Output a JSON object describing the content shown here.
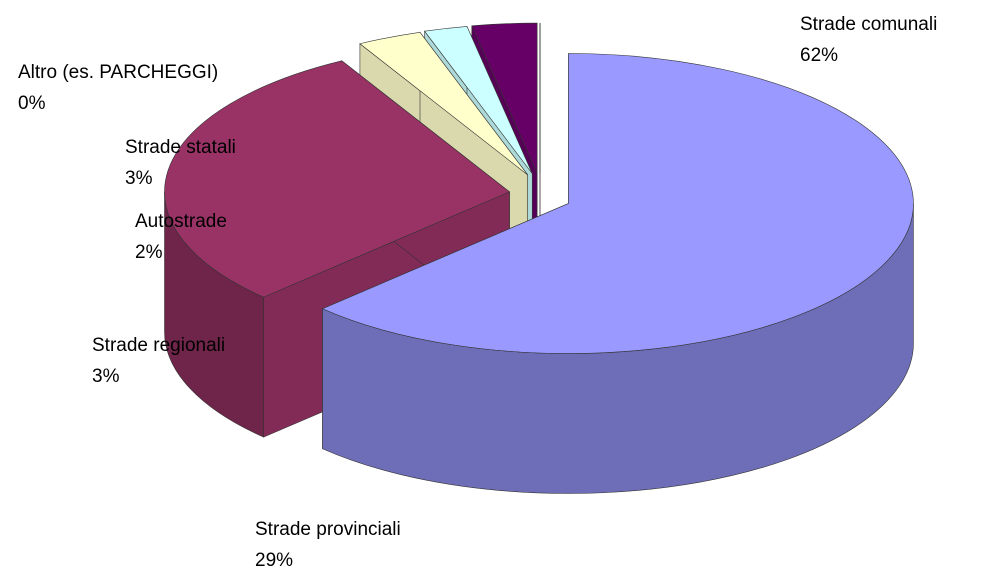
{
  "chart_data": {
    "type": "pie",
    "categories": [
      "Strade comunali",
      "Strade provinciali",
      "Strade regionali",
      "Autostrade",
      "Strade statali",
      "Altro (es. PARCHEGGI)"
    ],
    "values": [
      62,
      29,
      3,
      2,
      3,
      0
    ],
    "value_labels": [
      "62%",
      "29%",
      "3%",
      "2%",
      "3%",
      "0%"
    ],
    "colors": [
      "#9999ff",
      "#993366",
      "#ffffcc",
      "#ccffff",
      "#660066",
      "#6699cc"
    ]
  }
}
